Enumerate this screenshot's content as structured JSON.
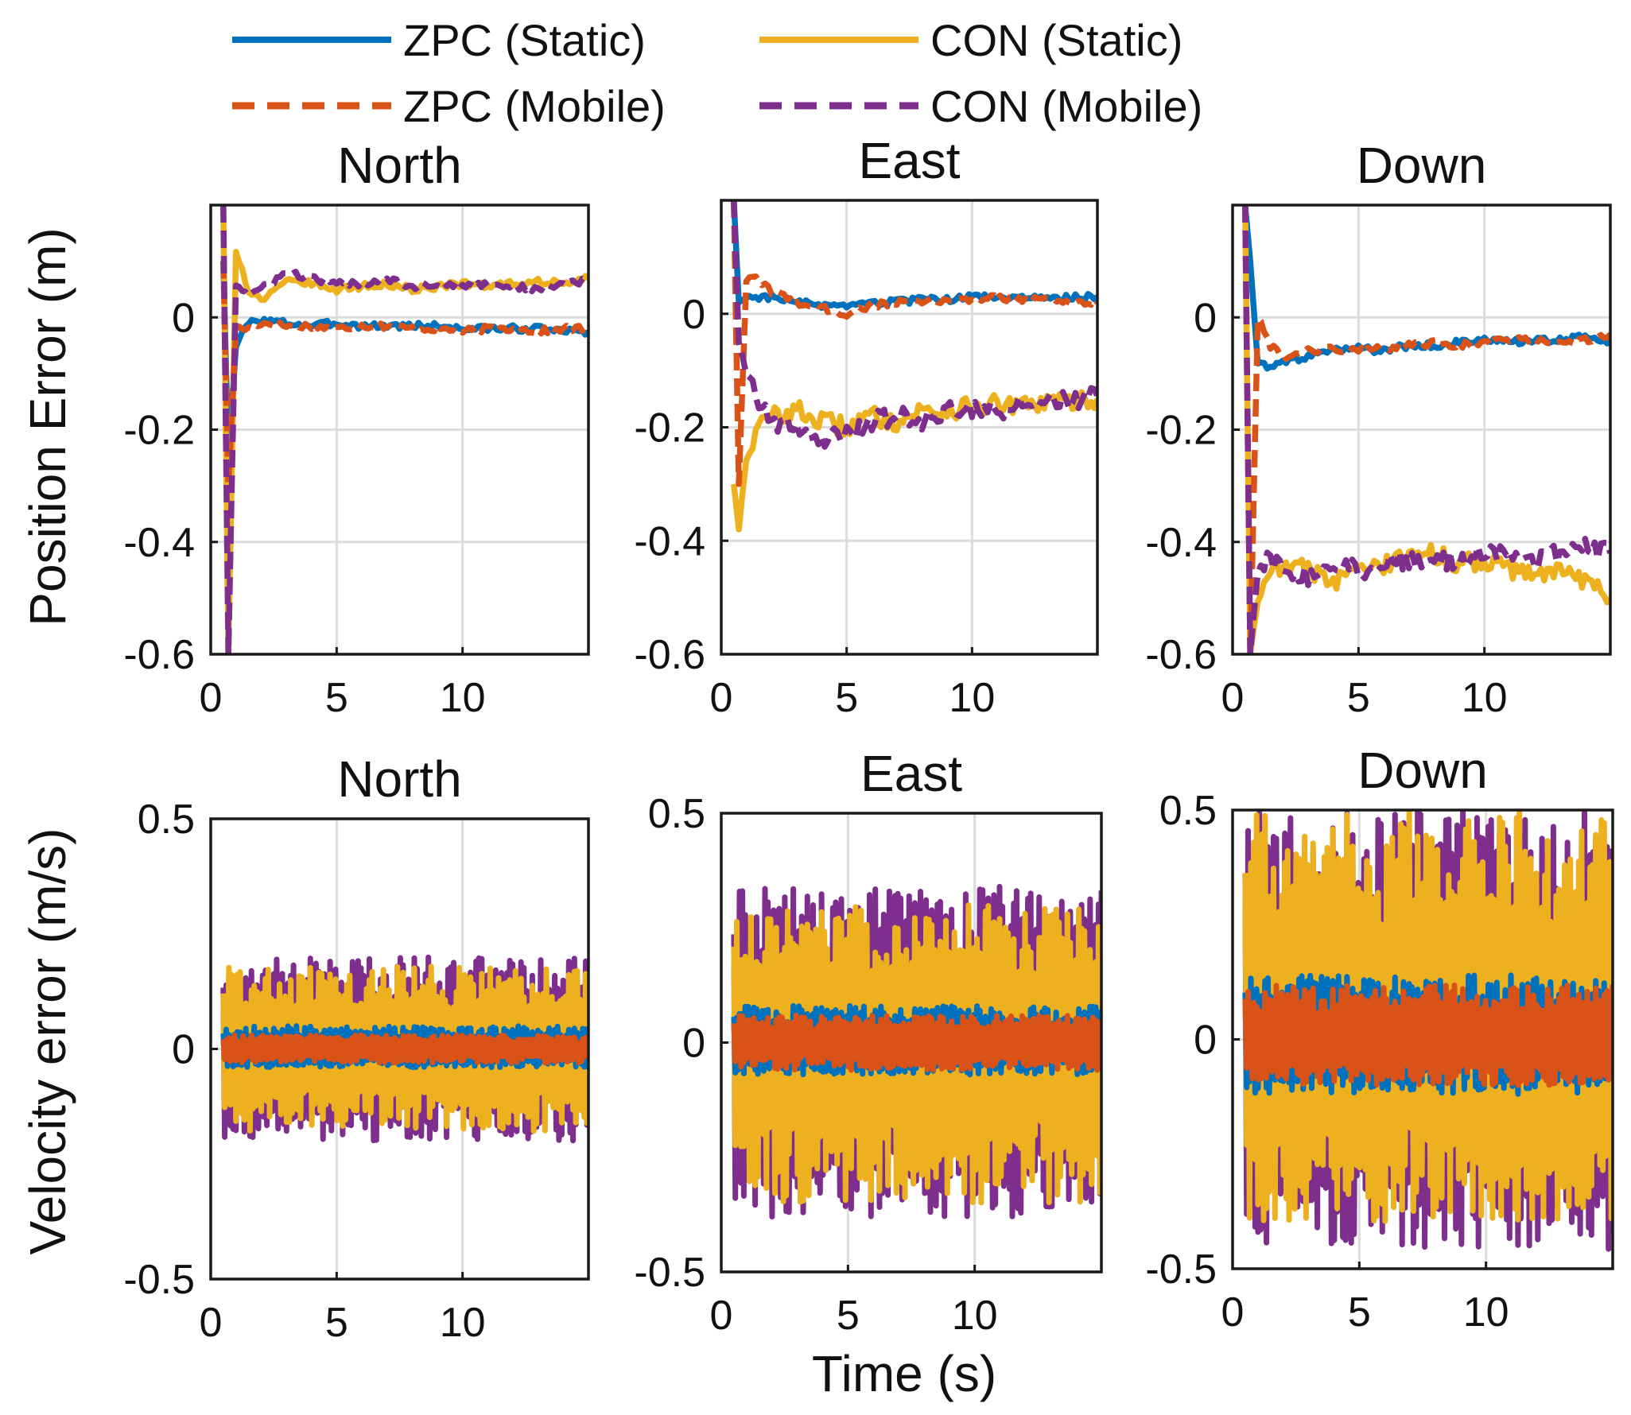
{
  "legend": [
    {
      "label": "ZPC (Static)",
      "color": "#0072BD",
      "dash": false
    },
    {
      "label": "CON (Static)",
      "color": "#EDB120",
      "dash": false
    },
    {
      "label": "ZPC (Mobile)",
      "color": "#D95319",
      "dash": true
    },
    {
      "label": "CON (Mobile)",
      "color": "#7E2F8E",
      "dash": true
    }
  ],
  "labels": {
    "position_ylabel": "Position Error (m)",
    "velocity_ylabel": "Velocity error (m/s)",
    "xlabel": "Time (s)"
  },
  "chart_data": [
    {
      "type": "line",
      "title": "North",
      "quantity": "position",
      "unit": "m",
      "xlim": [
        0,
        15
      ],
      "ylim": [
        -0.6,
        0.2
      ],
      "xticks": [
        "0",
        "5",
        "10"
      ],
      "yticks": [
        "0",
        "-0.2",
        "-0.4",
        "-0.6"
      ],
      "x": [
        0.5,
        0.7,
        1,
        1.5,
        2,
        3,
        4,
        5,
        6,
        7,
        8,
        9,
        10,
        11,
        12,
        13,
        14,
        15
      ],
      "series": [
        {
          "name": "ZPC (Static)",
          "values": [
            0.1,
            -0.25,
            -0.05,
            -0.01,
            -0.005,
            -0.01,
            -0.015,
            -0.01,
            -0.015,
            -0.015,
            -0.015,
            -0.015,
            -0.02,
            -0.02,
            -0.02,
            -0.02,
            -0.025,
            -0.025
          ]
        },
        {
          "name": "CON (Static)",
          "values": [
            0.2,
            -0.6,
            0.12,
            0.05,
            0.03,
            0.07,
            0.06,
            0.05,
            0.055,
            0.06,
            0.05,
            0.055,
            0.06,
            0.055,
            0.06,
            0.065,
            0.06,
            0.07
          ]
        },
        {
          "name": "ZPC (Mobile)",
          "values": [
            0.1,
            -0.3,
            -0.02,
            -0.02,
            -0.01,
            -0.015,
            -0.015,
            -0.02,
            -0.015,
            -0.015,
            -0.02,
            -0.02,
            -0.025,
            -0.02,
            -0.02,
            -0.025,
            -0.02,
            -0.02
          ]
        },
        {
          "name": "CON (Mobile)",
          "values": [
            0.2,
            -0.6,
            0.06,
            0.04,
            0.05,
            0.08,
            0.07,
            0.06,
            0.06,
            0.07,
            0.055,
            0.06,
            0.055,
            0.06,
            0.055,
            0.05,
            0.06,
            0.065
          ]
        }
      ]
    },
    {
      "type": "line",
      "title": "East",
      "quantity": "position",
      "unit": "m",
      "xlim": [
        0,
        15
      ],
      "ylim": [
        -0.6,
        0.2
      ],
      "xticks": [
        "0",
        "5",
        "10"
      ],
      "yticks": [
        "0",
        "-0.2",
        "-0.4",
        "-0.6"
      ],
      "x": [
        0.5,
        0.7,
        1,
        1.5,
        2,
        3,
        4,
        5,
        6,
        7,
        8,
        9,
        10,
        11,
        12,
        13,
        14,
        15
      ],
      "series": [
        {
          "name": "ZPC (Static)",
          "values": [
            0.2,
            0.02,
            0.03,
            0.03,
            0.03,
            0.02,
            0.015,
            0.01,
            0.02,
            0.02,
            0.025,
            0.025,
            0.03,
            0.03,
            0.03,
            0.025,
            0.03,
            0.03
          ]
        },
        {
          "name": "CON (Static)",
          "values": [
            -0.3,
            -0.38,
            -0.25,
            -0.2,
            -0.18,
            -0.17,
            -0.19,
            -0.2,
            -0.18,
            -0.19,
            -0.17,
            -0.17,
            -0.165,
            -0.16,
            -0.165,
            -0.155,
            -0.155,
            -0.15
          ]
        },
        {
          "name": "ZPC (Mobile)",
          "values": [
            0.2,
            -0.3,
            0.06,
            0.06,
            0.04,
            0.02,
            0.01,
            0.0,
            0.015,
            0.02,
            0.02,
            0.025,
            0.025,
            0.03,
            0.025,
            0.025,
            0.02,
            0.02
          ]
        },
        {
          "name": "CON (Mobile)",
          "values": [
            0.2,
            -0.05,
            -0.1,
            -0.15,
            -0.19,
            -0.2,
            -0.22,
            -0.21,
            -0.19,
            -0.18,
            -0.19,
            -0.17,
            -0.165,
            -0.17,
            -0.16,
            -0.155,
            -0.15,
            -0.145
          ]
        }
      ]
    },
    {
      "type": "line",
      "title": "Down",
      "quantity": "position",
      "unit": "m",
      "xlim": [
        0,
        15
      ],
      "ylim": [
        -0.6,
        0.2
      ],
      "xticks": [
        "0",
        "5",
        "10"
      ],
      "yticks": [
        "0",
        "-0.2",
        "-0.4",
        "-0.6"
      ],
      "x": [
        0.5,
        0.7,
        1,
        1.5,
        2,
        3,
        4,
        5,
        6,
        7,
        8,
        9,
        10,
        11,
        12,
        13,
        14,
        15
      ],
      "series": [
        {
          "name": "ZPC (Static)",
          "values": [
            0.2,
            0.1,
            -0.08,
            -0.09,
            -0.08,
            -0.07,
            -0.06,
            -0.055,
            -0.06,
            -0.05,
            -0.05,
            -0.045,
            -0.04,
            -0.045,
            -0.04,
            -0.04,
            -0.035,
            -0.045
          ]
        },
        {
          "name": "CON (Static)",
          "values": [
            0.2,
            -0.6,
            -0.5,
            -0.45,
            -0.44,
            -0.45,
            -0.47,
            -0.45,
            -0.44,
            -0.43,
            -0.42,
            -0.44,
            -0.43,
            -0.45,
            -0.46,
            -0.45,
            -0.47,
            -0.5
          ]
        },
        {
          "name": "ZPC (Mobile)",
          "values": [
            0.2,
            -0.6,
            0.0,
            -0.05,
            -0.07,
            -0.06,
            -0.055,
            -0.06,
            -0.055,
            -0.05,
            -0.045,
            -0.05,
            -0.045,
            -0.04,
            -0.04,
            -0.045,
            -0.04,
            -0.03
          ]
        },
        {
          "name": "CON (Mobile)",
          "values": [
            0.2,
            -0.6,
            -0.45,
            -0.43,
            -0.45,
            -0.46,
            -0.44,
            -0.45,
            -0.44,
            -0.43,
            -0.44,
            -0.43,
            -0.42,
            -0.42,
            -0.43,
            -0.42,
            -0.41,
            -0.42
          ]
        }
      ]
    },
    {
      "type": "line",
      "title": "North",
      "quantity": "velocity",
      "unit": "m/s",
      "xlim": [
        0,
        15
      ],
      "ylim": [
        -0.5,
        0.5
      ],
      "xticks": [
        "0",
        "5",
        "10"
      ],
      "yticks": [
        "0.5",
        "0",
        "-0.5"
      ],
      "x_range": [
        0.5,
        15
      ],
      "series": [
        {
          "name": "CON (Mobile)",
          "band": [
            -0.2,
            0.2
          ]
        },
        {
          "name": "CON (Static)",
          "band": [
            -0.18,
            0.18
          ]
        },
        {
          "name": "ZPC (Static)",
          "band": [
            -0.04,
            0.05
          ]
        },
        {
          "name": "ZPC (Mobile)",
          "band": [
            -0.03,
            0.03
          ]
        }
      ]
    },
    {
      "type": "line",
      "title": "East",
      "quantity": "velocity",
      "unit": "m/s",
      "xlim": [
        0,
        15
      ],
      "ylim": [
        -0.5,
        0.5
      ],
      "xticks": [
        "0",
        "5",
        "10"
      ],
      "yticks": [
        "0.5",
        "0",
        "-0.5"
      ],
      "x_range": [
        0.5,
        15
      ],
      "series": [
        {
          "name": "CON (Mobile)",
          "band": [
            -0.38,
            0.34
          ]
        },
        {
          "name": "CON (Static)",
          "band": [
            -0.35,
            0.3
          ]
        },
        {
          "name": "ZPC (Static)",
          "band": [
            -0.07,
            0.08
          ]
        },
        {
          "name": "ZPC (Mobile)",
          "band": [
            -0.06,
            0.06
          ]
        }
      ]
    },
    {
      "type": "line",
      "title": "Down",
      "quantity": "velocity",
      "unit": "m/s",
      "xlim": [
        0,
        15
      ],
      "ylim": [
        -0.5,
        0.5
      ],
      "xticks": [
        "0",
        "5",
        "10"
      ],
      "yticks": [
        "0.5",
        "0",
        "-0.5"
      ],
      "x_range": [
        0.5,
        15
      ],
      "series": [
        {
          "name": "CON (Mobile)",
          "band": [
            -0.46,
            0.5
          ]
        },
        {
          "name": "CON (Static)",
          "band": [
            -0.4,
            0.5
          ]
        },
        {
          "name": "ZPC (Static)",
          "band": [
            -0.12,
            0.14
          ]
        },
        {
          "name": "ZPC (Mobile)",
          "band": [
            -0.1,
            0.12
          ]
        }
      ]
    }
  ]
}
